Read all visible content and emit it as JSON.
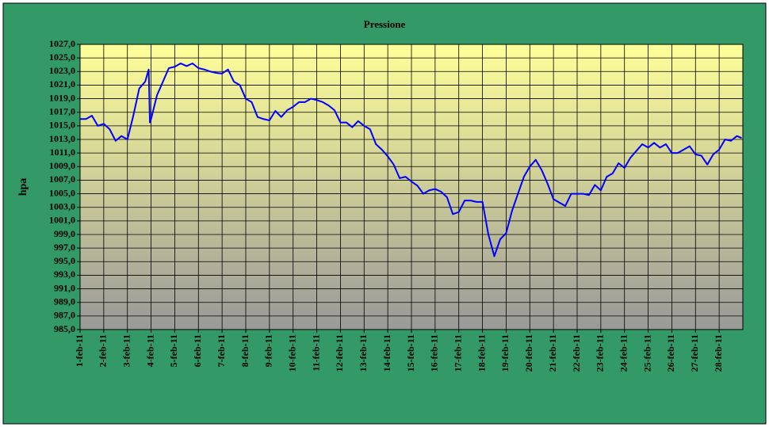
{
  "chart_data": {
    "type": "line",
    "title": "Pressione",
    "y_label": "hpa",
    "x": [
      1,
      1.25,
      1.5,
      1.75,
      2,
      2.25,
      2.5,
      2.75,
      3,
      3.25,
      3.5,
      3.75,
      3.9,
      3.95,
      4,
      4.25,
      4.5,
      4.75,
      5,
      5.25,
      5.5,
      5.75,
      6,
      6.25,
      6.5,
      6.75,
      7,
      7.25,
      7.5,
      7.75,
      8,
      8.25,
      8.5,
      8.75,
      9,
      9.25,
      9.5,
      9.75,
      10,
      10.25,
      10.5,
      10.75,
      11,
      11.25,
      11.5,
      11.75,
      12,
      12.25,
      12.5,
      12.75,
      13,
      13.25,
      13.5,
      13.75,
      14,
      14.25,
      14.5,
      14.75,
      15,
      15.25,
      15.5,
      15.75,
      16,
      16.25,
      16.5,
      16.75,
      17,
      17.25,
      17.5,
      17.75,
      18,
      18.25,
      18.5,
      18.75,
      19,
      19.25,
      19.5,
      19.75,
      20,
      20.25,
      20.5,
      20.75,
      21,
      21.25,
      21.5,
      21.75,
      22,
      22.25,
      22.5,
      22.75,
      23,
      23.25,
      23.5,
      23.75,
      24,
      24.25,
      24.5,
      24.75,
      25,
      25.25,
      25.5,
      25.75,
      26,
      26.25,
      26.5,
      26.75,
      27,
      27.25,
      27.5,
      27.75,
      28,
      28.25,
      28.5,
      28.75,
      28.95
    ],
    "series": [
      {
        "name": "Pressione",
        "color": "#0000ff",
        "values": [
          1016,
          1016,
          1016.5,
          1015,
          1015.3,
          1014.5,
          1012.8,
          1013.5,
          1013,
          1016.5,
          1020.5,
          1021.5,
          1023.3,
          1015.5,
          1016,
          1019.5,
          1021.5,
          1023.5,
          1023.7,
          1024.2,
          1023.8,
          1024.2,
          1023.5,
          1023.3,
          1023,
          1022.8,
          1022.7,
          1023.3,
          1021.5,
          1021,
          1019,
          1018.5,
          1016.3,
          1016,
          1015.8,
          1017.2,
          1016.3,
          1017.3,
          1017.8,
          1018.5,
          1018.5,
          1019,
          1018.8,
          1018.5,
          1018,
          1017.3,
          1015.5,
          1015.5,
          1014.8,
          1015.7,
          1015,
          1014.5,
          1012.3,
          1011.5,
          1010.5,
          1009.3,
          1007.3,
          1007.5,
          1006.8,
          1006.2,
          1005,
          1005.5,
          1005.7,
          1005.3,
          1004.5,
          1002,
          1002.3,
          1004,
          1004,
          1003.8,
          1003.8,
          999,
          995.8,
          998.3,
          999.2,
          1002.5,
          1005,
          1007.5,
          1009,
          1010,
          1008.5,
          1006.5,
          1004.2,
          1003.7,
          1003.2,
          1005,
          1005,
          1005,
          1004.8,
          1006.3,
          1005.5,
          1007.5,
          1008,
          1009.5,
          1008.8,
          1010.3,
          1011.3,
          1012.3,
          1011.8,
          1012.5,
          1011.8,
          1012.3,
          1011,
          1011,
          1011.5,
          1012,
          1010.8,
          1010.6,
          1009.3,
          1010.8,
          1011.5,
          1013,
          1012.8,
          1013.5,
          1013.2
        ]
      }
    ],
    "xlim": [
      1,
      29
    ],
    "xticks": [
      {
        "value": 1,
        "label": "1-feb-11"
      },
      {
        "value": 2,
        "label": "2-feb-11"
      },
      {
        "value": 3,
        "label": "3-feb-11"
      },
      {
        "value": 4,
        "label": "4-feb-11"
      },
      {
        "value": 5,
        "label": "5-feb-11"
      },
      {
        "value": 6,
        "label": "6-feb-11"
      },
      {
        "value": 7,
        "label": "7-feb-11"
      },
      {
        "value": 8,
        "label": "8-feb-11"
      },
      {
        "value": 9,
        "label": "9-feb-11"
      },
      {
        "value": 10,
        "label": "10-feb-11"
      },
      {
        "value": 11,
        "label": "11-feb-11"
      },
      {
        "value": 12,
        "label": "12-feb-11"
      },
      {
        "value": 13,
        "label": "13-feb-11"
      },
      {
        "value": 14,
        "label": "14-feb-11"
      },
      {
        "value": 15,
        "label": "15-feb-11"
      },
      {
        "value": 16,
        "label": "16-feb-11"
      },
      {
        "value": 17,
        "label": "17-feb-11"
      },
      {
        "value": 18,
        "label": "18-feb-11"
      },
      {
        "value": 19,
        "label": "19-feb-11"
      },
      {
        "value": 20,
        "label": "20-feb-11"
      },
      {
        "value": 21,
        "label": "21-feb-11"
      },
      {
        "value": 22,
        "label": "22-feb-11"
      },
      {
        "value": 23,
        "label": "23-feb-11"
      },
      {
        "value": 24,
        "label": "24-feb-11"
      },
      {
        "value": 25,
        "label": "25-feb-11"
      },
      {
        "value": 26,
        "label": "26-feb-11"
      },
      {
        "value": 27,
        "label": "27-feb-11"
      },
      {
        "value": 28,
        "label": "28-feb-11"
      }
    ],
    "ylim": [
      985,
      1027
    ],
    "yticks": [
      {
        "value": 985,
        "label": "985,0"
      },
      {
        "value": 987,
        "label": "987,0"
      },
      {
        "value": 989,
        "label": "989,0"
      },
      {
        "value": 991,
        "label": "991,0"
      },
      {
        "value": 993,
        "label": "993,0"
      },
      {
        "value": 995,
        "label": "995,0"
      },
      {
        "value": 997,
        "label": "997,0"
      },
      {
        "value": 999,
        "label": "999,0"
      },
      {
        "value": 1001,
        "label": "1001,0"
      },
      {
        "value": 1003,
        "label": "1003,0"
      },
      {
        "value": 1005,
        "label": "1005,0"
      },
      {
        "value": 1007,
        "label": "1007,0"
      },
      {
        "value": 1009,
        "label": "1009,0"
      },
      {
        "value": 1011,
        "label": "1011,0"
      },
      {
        "value": 1013,
        "label": "1013,0"
      },
      {
        "value": 1015,
        "label": "1015,0"
      },
      {
        "value": 1017,
        "label": "1017,0"
      },
      {
        "value": 1019,
        "label": "1019,0"
      },
      {
        "value": 1021,
        "label": "1021,0"
      },
      {
        "value": 1023,
        "label": "1023,0"
      },
      {
        "value": 1025,
        "label": "1025,0"
      },
      {
        "value": 1027,
        "label": "1027,0"
      }
    ],
    "grid": true
  }
}
